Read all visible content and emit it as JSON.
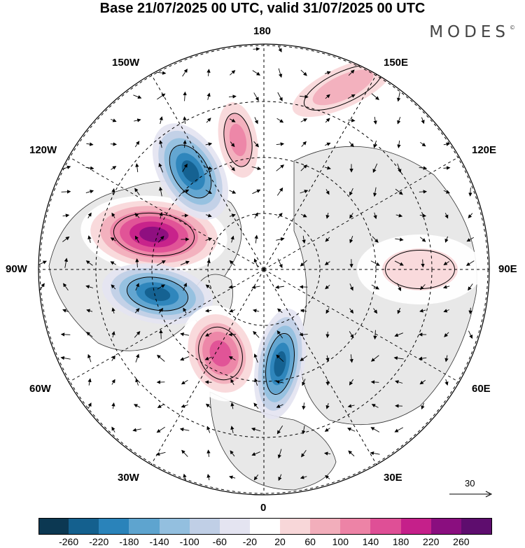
{
  "header": {
    "title": "Base 21/07/2025 00 UTC, valid 31/07/2025 00 UTC",
    "brand": "MODES",
    "brand_mark": "©"
  },
  "map": {
    "projection": "north-polar-stereographic",
    "longitude_labels": {
      "top": "180",
      "upper_left": "150W",
      "upper_right": "150E",
      "mid_upper_left": "120W",
      "mid_upper_right": "120E",
      "left": "90W",
      "right": "90E",
      "mid_lower_left": "60W",
      "mid_lower_right": "60E",
      "lower_left": "30W",
      "lower_right": "30E",
      "bottom": "0"
    },
    "anomaly_centers": [
      {
        "name": "positive-north-pacific",
        "sign": "positive",
        "peak": 140
      },
      {
        "name": "positive-canada",
        "sign": "positive",
        "peak": 260
      },
      {
        "name": "negative-alaska",
        "sign": "negative",
        "peak": -220
      },
      {
        "name": "negative-labrador",
        "sign": "negative",
        "peak": -220
      },
      {
        "name": "positive-north-atlantic",
        "sign": "positive",
        "peak": 180
      },
      {
        "name": "negative-norway",
        "sign": "negative",
        "peak": -220
      },
      {
        "name": "positive-siberia",
        "sign": "positive",
        "peak": 100
      },
      {
        "name": "positive-west-siberia",
        "sign": "positive",
        "peak": 60
      }
    ],
    "reference_vector": "30"
  },
  "colorbar": {
    "ticks": [
      "-260",
      "-220",
      "-180",
      "-140",
      "-100",
      "-60",
      "-20",
      "20",
      "60",
      "100",
      "140",
      "180",
      "220",
      "260"
    ],
    "colors": [
      "#0c3852",
      "#14608e",
      "#2a83ba",
      "#5ea4cf",
      "#93bfdf",
      "#c0cfe6",
      "#e4e4f1",
      "#ffffff",
      "#f8d7d9",
      "#f2aebb",
      "#ed83a6",
      "#df4f96",
      "#c5208a",
      "#8a0e7f",
      "#5e0d6e"
    ]
  }
}
